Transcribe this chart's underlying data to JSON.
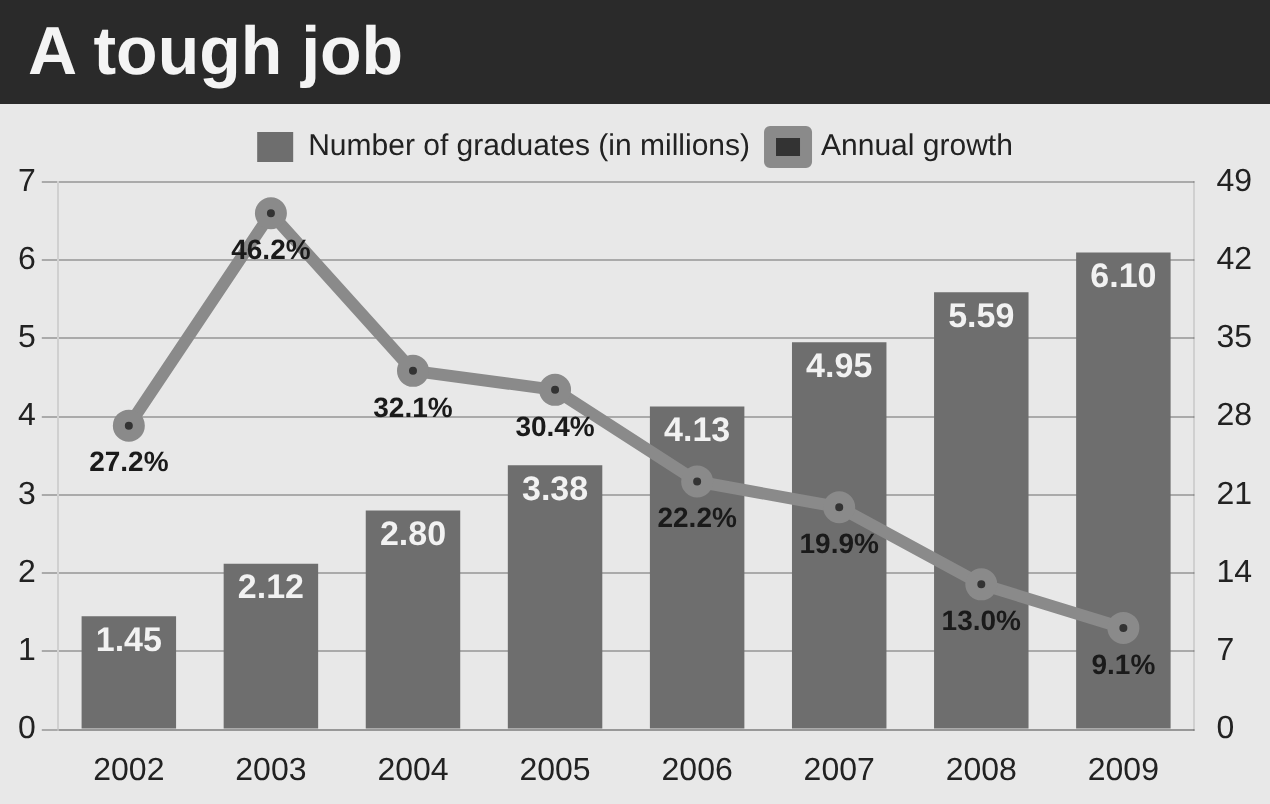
{
  "chart_data": {
    "type": "bar",
    "title": "A tough job",
    "categories": [
      "2002",
      "2003",
      "2004",
      "2005",
      "2006",
      "2007",
      "2008",
      "2009"
    ],
    "series": [
      {
        "name": "Number of graduates (in millions)",
        "color": "#6e6e6e",
        "values": [
          1.45,
          2.12,
          2.8,
          3.38,
          4.13,
          4.95,
          5.59,
          6.1
        ],
        "value_labels": [
          "1.45",
          "2.12",
          "2.80",
          "3.38",
          "4.13",
          "4.95",
          "5.59",
          "6.10"
        ]
      },
      {
        "name": "Annual growth",
        "type": "line",
        "axis": "y2",
        "color": "#8a8a8a",
        "values": [
          27.2,
          46.2,
          32.1,
          30.4,
          22.2,
          19.9,
          13.0,
          9.1
        ],
        "value_labels": [
          "27.2%",
          "46.2%",
          "32.1%",
          "30.4%",
          "22.2%",
          "19.9%",
          "13.0%",
          "9.1%"
        ]
      }
    ],
    "ylim": [
      0,
      7
    ],
    "yticks": [
      0,
      1,
      2,
      3,
      4,
      5,
      6,
      7
    ],
    "y2lim": [
      0,
      49
    ],
    "y2ticks": [
      0,
      7,
      14,
      21,
      28,
      35,
      42,
      49
    ],
    "grid": "y",
    "legend": "top",
    "marker": "circle"
  }
}
